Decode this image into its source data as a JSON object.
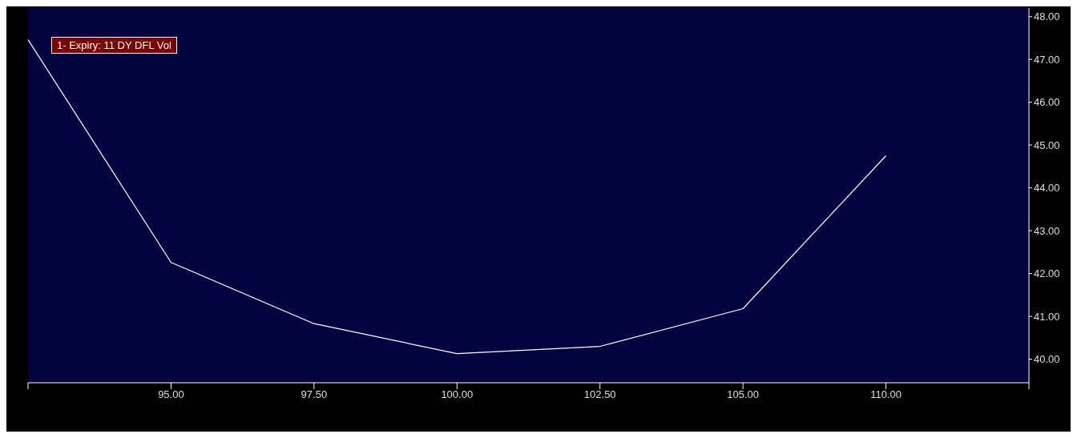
{
  "chart_data": {
    "type": "line",
    "categories": [
      null,
      "95.00",
      "97.50",
      "100.00",
      "102.50",
      "105.00",
      "110.00",
      null
    ],
    "series": [
      {
        "name": "1- Expiry: 11 DY DFL Vol",
        "color": "#ffffff",
        "values": [
          47.46,
          42.26,
          40.83,
          40.13,
          40.3,
          41.18,
          44.75,
          null
        ]
      }
    ],
    "ylim": [
      39.45,
      48.2
    ],
    "yticks": [
      {
        "value": 40,
        "label": "40.00"
      },
      {
        "value": 41,
        "label": "41.00"
      },
      {
        "value": 42,
        "label": "42.00"
      },
      {
        "value": 43,
        "label": "43.00"
      },
      {
        "value": 44,
        "label": "44.00"
      },
      {
        "value": 45,
        "label": "45.00"
      },
      {
        "value": 46,
        "label": "46.00"
      },
      {
        "value": 47,
        "label": "47.00"
      },
      {
        "value": 48,
        "label": "48.00"
      }
    ],
    "grid": false,
    "legend": "top left",
    "marker": "none",
    "line_style": "solid"
  }
}
